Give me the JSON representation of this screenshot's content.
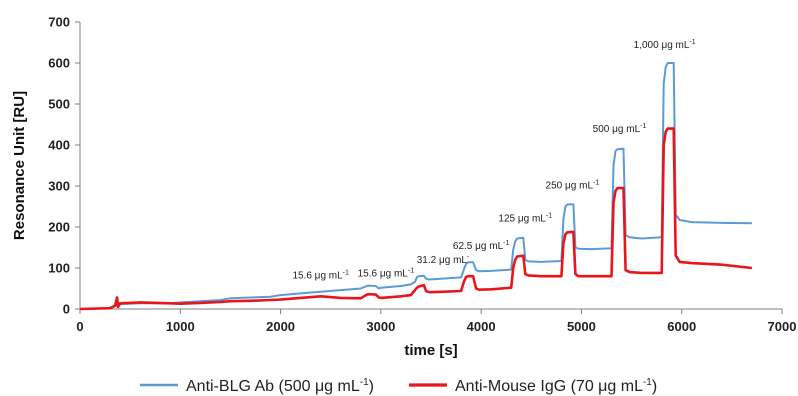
{
  "chart_data": {
    "type": "line",
    "title": "",
    "xlabel": "time [s]",
    "ylabel": "Resonance Unit [RU]",
    "xlim": [
      0,
      7000
    ],
    "ylim": [
      0,
      700
    ],
    "x_ticks": [
      0,
      1000,
      2000,
      3000,
      4000,
      5000,
      6000,
      7000
    ],
    "y_ticks": [
      0,
      100,
      200,
      300,
      400,
      500,
      600,
      700
    ],
    "grid": false,
    "legend_position": "bottom",
    "series": [
      {
        "name": "Anti-BLG Ab (500 μg mL",
        "name_sup": "-1",
        "name_tail": ")",
        "color": "#5B9BD5",
        "x": [
          0,
          300,
          360,
          380,
          400,
          600,
          900,
          1000,
          1200,
          1400,
          1500,
          1700,
          1900,
          2000,
          2200,
          2400,
          2600,
          2800,
          2860,
          2880,
          2950,
          2980,
          3000,
          3200,
          3300,
          3340,
          3360,
          3380,
          3430,
          3450,
          3480,
          3600,
          3800,
          3830,
          3850,
          3870,
          3920,
          3950,
          3980,
          4100,
          4300,
          4320,
          4340,
          4360,
          4420,
          4440,
          4470,
          4600,
          4800,
          4820,
          4840,
          4860,
          4920,
          4940,
          4970,
          5100,
          5300,
          5320,
          5340,
          5360,
          5420,
          5440,
          5480,
          5600,
          5800,
          5820,
          5840,
          5860,
          5920,
          5940,
          5980,
          6100,
          6400,
          6700
        ],
        "y": [
          0,
          2,
          10,
          5,
          12,
          14,
          14,
          16,
          19,
          22,
          26,
          28,
          30,
          34,
          38,
          42,
          46,
          50,
          56,
          57,
          56,
          50,
          52,
          56,
          60,
          66,
          78,
          80,
          81,
          74,
          72,
          74,
          77,
          98,
          110,
          114,
          114,
          95,
          92,
          93,
          96,
          145,
          165,
          172,
          174,
          120,
          116,
          115,
          117,
          220,
          250,
          255,
          255,
          150,
          147,
          146,
          148,
          350,
          385,
          390,
          391,
          180,
          175,
          172,
          175,
          550,
          590,
          600,
          600,
          230,
          217,
          212,
          210,
          209
        ]
      },
      {
        "name": "Anti-Mouse IgG (70 μg mL",
        "name_sup": "-1",
        "name_tail": ")",
        "color": "#E8161B",
        "x": [
          0,
          300,
          350,
          370,
          380,
          400,
          600,
          900,
          1000,
          1200,
          1400,
          1500,
          1700,
          1900,
          2000,
          2200,
          2400,
          2600,
          2800,
          2860,
          2880,
          2950,
          2980,
          3000,
          3200,
          3300,
          3340,
          3360,
          3380,
          3430,
          3450,
          3480,
          3600,
          3800,
          3830,
          3850,
          3870,
          3920,
          3950,
          3980,
          4100,
          4300,
          4320,
          4340,
          4360,
          4420,
          4440,
          4470,
          4600,
          4800,
          4820,
          4840,
          4860,
          4920,
          4940,
          4970,
          5100,
          5300,
          5320,
          5340,
          5360,
          5420,
          5440,
          5480,
          5600,
          5800,
          5820,
          5840,
          5860,
          5920,
          5940,
          5980,
          6100,
          6400,
          6700
        ],
        "y": [
          0,
          2,
          8,
          28,
          5,
          14,
          16,
          14,
          13,
          15,
          17,
          19,
          20,
          22,
          23,
          27,
          31,
          27,
          26,
          35,
          36,
          35,
          28,
          27,
          31,
          34,
          46,
          52,
          55,
          58,
          44,
          41,
          42,
          44,
          68,
          78,
          80,
          80,
          50,
          47,
          48,
          52,
          100,
          120,
          128,
          130,
          85,
          82,
          80,
          80,
          160,
          182,
          187,
          188,
          85,
          80,
          80,
          80,
          260,
          288,
          295,
          295,
          95,
          90,
          88,
          88,
          400,
          432,
          440,
          440,
          130,
          115,
          112,
          108,
          100
        ]
      }
    ],
    "annotations": [
      {
        "text": "15.6 μg mL",
        "sup": "-1",
        "x": 2400,
        "y": 75
      },
      {
        "text": "15.6 μg mL",
        "sup": "-1",
        "x": 3050,
        "y": 79
      },
      {
        "text": "31.2 μg mL",
        "sup": "-",
        "x": 3620,
        "y": 112
      },
      {
        "text": "62.5 μg mL",
        "sup": "-1",
        "x": 4000,
        "y": 146
      },
      {
        "text": "125 μg mL",
        "sup": "-1",
        "x": 4440,
        "y": 214
      },
      {
        "text": "250 μg mL",
        "sup": "-1",
        "x": 4910,
        "y": 294
      },
      {
        "text": "500 μg mL",
        "sup": "-1",
        "x": 5380,
        "y": 432
      },
      {
        "text": "1,000 μg mL",
        "sup": "-1",
        "x": 5830,
        "y": 637
      }
    ]
  }
}
